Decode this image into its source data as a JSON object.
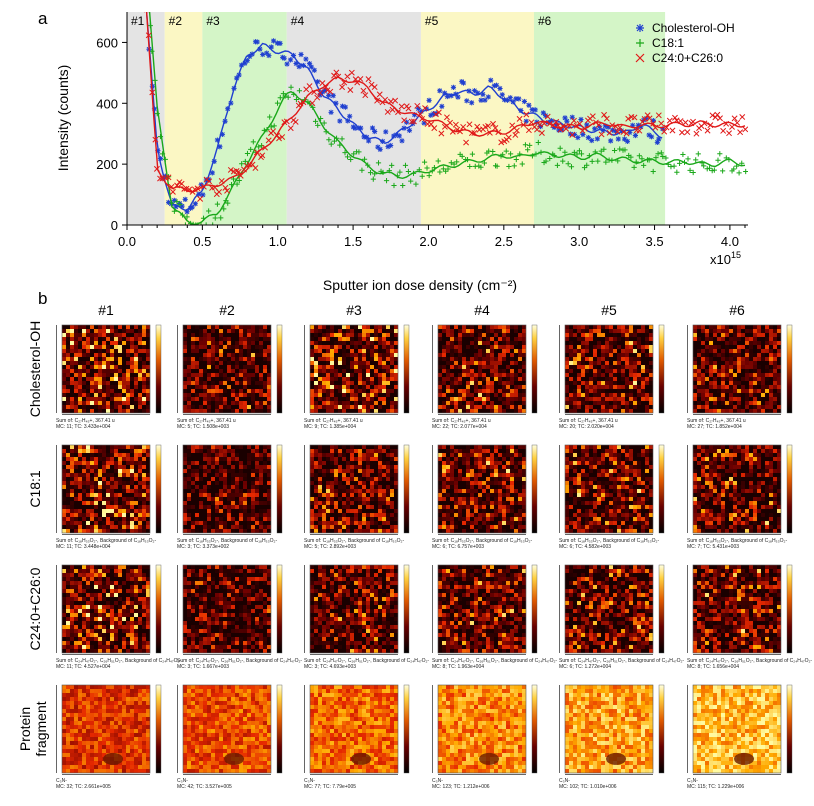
{
  "panel_a_label": "a",
  "panel_b_label": "b",
  "chart_data": {
    "type": "scatter",
    "xlabel": "Sputter ion dose density (cm⁻²)",
    "ylabel": "Intensity (counts)",
    "x_multiplier_label": "x10",
    "x_multiplier_exp": "15",
    "xlim": [
      0,
      4.12
    ],
    "ylim": [
      0,
      700
    ],
    "x_ticks": [
      0.0,
      0.5,
      1.0,
      1.5,
      2.0,
      2.5,
      3.0,
      3.5,
      4.0
    ],
    "x_tick_labels": [
      "0.0",
      "0.5",
      "1.0",
      "1.5",
      "2.0",
      "2.5",
      "3.0",
      "3.5",
      "4.0"
    ],
    "y_ticks": [
      0,
      200,
      400,
      600
    ],
    "y_tick_labels": [
      "0",
      "200",
      "400",
      "600"
    ],
    "regions": [
      {
        "label": "#1",
        "x0": 0.0,
        "x1": 0.25,
        "color": "#e4e4e4"
      },
      {
        "label": "#2",
        "x0": 0.25,
        "x1": 0.5,
        "color": "#fbf7c4"
      },
      {
        "label": "#3",
        "x0": 0.5,
        "x1": 1.06,
        "color": "#d4f5c7"
      },
      {
        "label": "#4",
        "x0": 1.06,
        "x1": 1.95,
        "color": "#e4e4e4"
      },
      {
        "label": "#5",
        "x0": 1.95,
        "x1": 2.7,
        "color": "#fbf7c4"
      },
      {
        "label": "#6",
        "x0": 2.7,
        "x1": 3.57,
        "color": "#d4f5c7"
      }
    ],
    "series": [
      {
        "name": "Cholesterol-OH",
        "color": "#1f3fd0",
        "marker": "asterisk",
        "x": [
          0.13,
          0.2,
          0.3,
          0.4,
          0.5,
          0.6,
          0.7,
          0.8,
          0.9,
          1.0,
          1.1,
          1.2,
          1.3,
          1.4,
          1.5,
          1.6,
          1.7,
          1.8,
          1.9,
          2.0,
          2.1,
          2.2,
          2.3,
          2.4,
          2.5,
          2.6,
          2.7,
          2.8,
          2.9,
          3.0,
          3.1,
          3.2,
          3.3,
          3.4,
          3.5,
          3.55
        ],
        "y": [
          700,
          250,
          60,
          55,
          110,
          250,
          440,
          560,
          590,
          570,
          560,
          510,
          430,
          380,
          330,
          290,
          270,
          300,
          340,
          380,
          420,
          440,
          430,
          450,
          420,
          380,
          360,
          340,
          330,
          320,
          310,
          305,
          300,
          330,
          310,
          290
        ]
      },
      {
        "name": "C18:1",
        "color": "#1aa81a",
        "marker": "plus",
        "x": [
          0.15,
          0.2,
          0.3,
          0.4,
          0.5,
          0.6,
          0.7,
          0.8,
          0.9,
          1.0,
          1.05,
          1.1,
          1.2,
          1.3,
          1.4,
          1.5,
          1.6,
          1.7,
          1.8,
          1.9,
          2.0,
          2.1,
          2.2,
          2.3,
          2.4,
          2.5,
          2.6,
          2.7,
          2.8,
          2.9,
          3.0,
          3.1,
          3.2,
          3.3,
          3.4,
          3.5,
          3.6,
          3.7,
          3.8,
          3.9,
          4.0,
          4.1
        ],
        "y": [
          700,
          380,
          60,
          10,
          10,
          40,
          120,
          210,
          290,
          380,
          420,
          440,
          400,
          330,
          270,
          230,
          190,
          170,
          160,
          165,
          180,
          190,
          200,
          210,
          220,
          230,
          220,
          240,
          230,
          230,
          220,
          230,
          220,
          215,
          210,
          210,
          205,
          210,
          200,
          200,
          210,
          200
        ]
      },
      {
        "name": "C24:0+C26:0",
        "color": "#e01818",
        "marker": "x",
        "x": [
          0.13,
          0.2,
          0.3,
          0.4,
          0.5,
          0.6,
          0.7,
          0.8,
          0.9,
          1.0,
          1.1,
          1.2,
          1.3,
          1.4,
          1.5,
          1.6,
          1.7,
          1.8,
          1.9,
          2.0,
          2.1,
          2.2,
          2.3,
          2.4,
          2.5,
          2.6,
          2.7,
          2.8,
          2.9,
          3.0,
          3.1,
          3.2,
          3.3,
          3.4,
          3.5,
          3.6,
          3.7,
          3.8,
          3.9,
          4.0,
          4.1
        ],
        "y": [
          700,
          180,
          120,
          115,
          120,
          135,
          150,
          190,
          250,
          300,
          360,
          420,
          460,
          480,
          475,
          450,
          400,
          380,
          360,
          350,
          330,
          310,
          300,
          300,
          305,
          320,
          340,
          330,
          325,
          320,
          330,
          335,
          320,
          330,
          325,
          330,
          330,
          335,
          330,
          330,
          330
        ]
      }
    ]
  },
  "panel_b": {
    "columns": [
      "#1",
      "#2",
      "#3",
      "#4",
      "#5",
      "#6"
    ],
    "rows": [
      {
        "label": "Cholesterol-OH",
        "theme": "dark",
        "captions": [
          [
            "Sum of: C₂₇H₄₅+, 367.41 u",
            "MC:   11; TC: 3.433e+004"
          ],
          [
            "Sum of: C₂₇H₄₅+, 367.41 u",
            "MC:    5; TC: 1.508e+003"
          ],
          [
            "Sum of: C₂₇H₄₅+, 367.41 u",
            "MC:    9; TC: 1.385e+004"
          ],
          [
            "Sum of: C₂₇H₄₅+, 367.41 u",
            "MC:   22; TC: 2.077e+004"
          ],
          [
            "Sum of: C₂₇H₄₅+, 367.41 u",
            "MC:   20; TC: 2.020e+004"
          ],
          [
            "Sum of: C₂₇H₄₅+, 367.41 u",
            "MC:   27; TC: 1.852e+004"
          ]
        ]
      },
      {
        "label": "C18:1",
        "theme": "dark",
        "captions": [
          [
            "Sum of: C₁₈H₃₃O₂-, Background of C₁₈H₃₃O₂-",
            "MC:   11; TC: 3.448e+004"
          ],
          [
            "Sum of: C₁₈H₃₃O₂-, Background of C₁₈H₃₃O₂-",
            "MC:    3; TC: 3.373e+002"
          ],
          [
            "Sum of: C₁₈H₃₃O₂-, Background of C₁₈H₃₃O₂-",
            "MC:    5; TC: 2.892e+003"
          ],
          [
            "Sum of: C₁₈H₃₃O₂-, Background of C₁₈H₃₃O₂-",
            "MC:    6; TC: 6.757e+003"
          ],
          [
            "Sum of: C₁₈H₃₃O₂-, Background of C₁₈H₃₃O₂-",
            "MC:    6; TC: 4.582e+003"
          ],
          [
            "Sum of: C₁₈H₃₃O₂-, Background of C₁₈H₃₃O₂-",
            "MC:    7; TC: 5.431e+003"
          ]
        ]
      },
      {
        "label": "C24:0+C26:0",
        "theme": "dark",
        "captions": [
          [
            "Sum of: C₂₄H₄₇O₂-, C₂₆H₅₁O₂-, Background of C₂₄H₄₇O₂-",
            "MC:   11; TC: 4.527e+004"
          ],
          [
            "Sum of: C₂₄H₄₇O₂-, C₂₆H₅₁O₂-, Background of C₂₄H₄₇O₂-",
            "MC:    3; TC: 1.667e+003"
          ],
          [
            "Sum of: C₂₄H₄₇O₂-, C₂₆H₅₁O₂-, Background of C₂₄H₄₇O₂-",
            "MC:    3; TC: 4.693e+003"
          ],
          [
            "Sum of: C₂₄H₄₇O₂-, C₂₆H₅₁O₂-, Background of C₂₄H₄₇O₂-",
            "MC:    8; TC: 1.963e+004"
          ],
          [
            "Sum of: C₂₄H₄₇O₂-, C₂₆H₅₁O₂-, Background of C₂₄H₄₇O₂-",
            "MC:    6; TC: 1.272e+004"
          ],
          [
            "Sum of: C₂₄H₄₇O₂-, C₂₆H₅₁O₂-, Background of C₂₄H₄₇O₂-",
            "MC:    8; TC: 1.656e+004"
          ]
        ]
      },
      {
        "label": "Protein fragment",
        "theme": "bright",
        "captions": [
          [
            "C₃N-",
            "MC:   32; TC: 2.661e+005"
          ],
          [
            "C₃N-",
            "MC:   42; TC: 3.527e+005"
          ],
          [
            "C₃N-",
            "MC:   77; TC: 7.79e+005"
          ],
          [
            "C₃N-",
            "MC:  123; TC: 1.212e+006"
          ],
          [
            "C₃N-",
            "MC:  102; TC: 1.010e+006"
          ],
          [
            "C₃N-",
            "MC:  115; TC: 1.229e+006"
          ]
        ]
      }
    ]
  }
}
